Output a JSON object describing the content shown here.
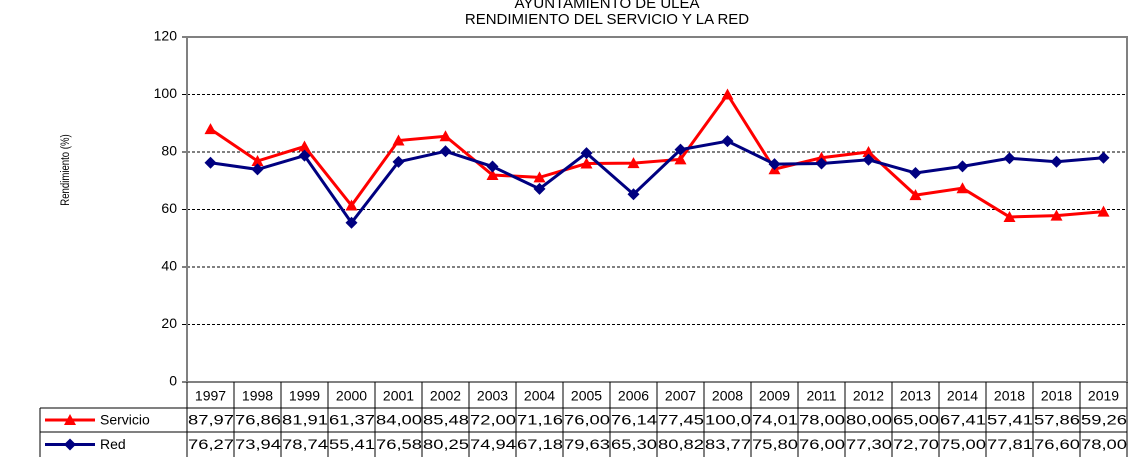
{
  "chart_data": {
    "type": "line",
    "title": "AYUNTAMIENTO  DE ULEA",
    "subtitle": "RENDIMIENTO  DEL SERVICIO Y LA RED",
    "y_label": "Rendimiento  (%)",
    "categories": [
      "1997",
      "1998",
      "1999",
      "2000",
      "2001",
      "2002",
      "2003",
      "2004",
      "2005",
      "2006",
      "2007",
      "2008",
      "2009",
      "2011",
      "2012",
      "2013",
      "2014",
      "2018",
      "2018",
      "2019"
    ],
    "series": [
      {
        "name": "Servicio",
        "color": "#ff0000",
        "marker": "triangle",
        "values": [
          87.97,
          76.86,
          81.91,
          61.37,
          84.0,
          85.48,
          72.0,
          71.16,
          76.0,
          76.14,
          77.45,
          100.0,
          74.01,
          78.0,
          80.0,
          65.0,
          67.41,
          57.41,
          57.86,
          59.26
        ],
        "value_labels": [
          "87,97",
          "76,86",
          "81,91",
          "61,37",
          "84,00",
          "85,48",
          "72,00",
          "71,16",
          "76,00",
          "76,14",
          "77,45",
          "100,0",
          "74,01",
          "78,00",
          "80,00",
          "65,00",
          "67,41",
          "57,41",
          "57,86",
          "59,26"
        ]
      },
      {
        "name": "Red",
        "color": "#000080",
        "marker": "diamond",
        "values": [
          76.27,
          73.94,
          78.74,
          55.41,
          76.58,
          80.25,
          74.94,
          67.18,
          79.63,
          65.3,
          80.82,
          83.77,
          75.8,
          76.0,
          77.3,
          72.7,
          75.0,
          77.81,
          76.6,
          78.0
        ],
        "value_labels": [
          "76,27",
          "73,94",
          "78,74",
          "55,41",
          "76,58",
          "80,25",
          "74,94",
          "67,18",
          "79,63",
          "65,30",
          "80,82",
          "83,77",
          "75,80",
          "76,00",
          "77,30",
          "72,70",
          "75,00",
          "77,81",
          "76,60",
          "78,00"
        ]
      }
    ],
    "ylim": [
      0,
      120
    ],
    "yticks": [
      0,
      20,
      40,
      60,
      80,
      100,
      120
    ],
    "grid": true
  }
}
